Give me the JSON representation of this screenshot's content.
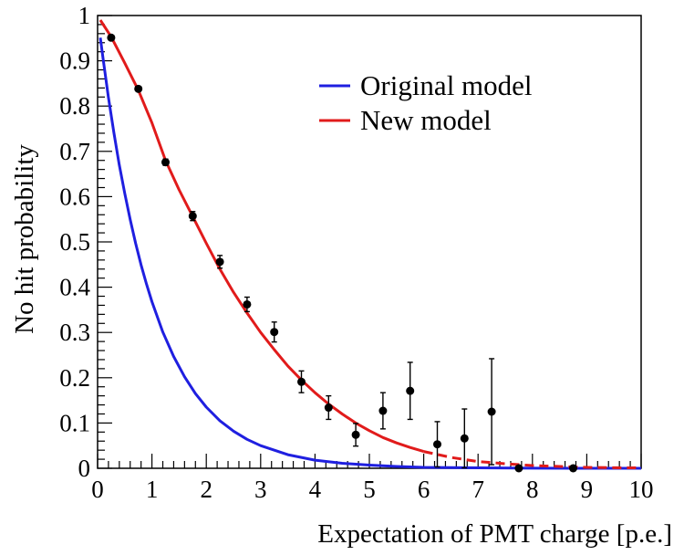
{
  "chart_data": {
    "type": "line",
    "title": "",
    "xlabel": "Expectation of  PMT charge [p.e.]",
    "ylabel": "No hit probability",
    "xlim": [
      0,
      10
    ],
    "ylim": [
      0,
      1
    ],
    "x_ticks": [
      0,
      1,
      2,
      3,
      4,
      5,
      6,
      7,
      8,
      9,
      10
    ],
    "x_tick_labels": [
      "0",
      "1",
      "2",
      "3",
      "4",
      "5",
      "6",
      "7",
      "8",
      "9",
      "10"
    ],
    "y_ticks": [
      0,
      0.1,
      0.2,
      0.3,
      0.4,
      0.5,
      0.6,
      0.7,
      0.8,
      0.9,
      1
    ],
    "y_tick_labels": [
      "0",
      "0.1",
      "0.2",
      "0.3",
      "0.4",
      "0.5",
      "0.6",
      "0.7",
      "0.8",
      "0.9",
      "1"
    ],
    "grid": false,
    "legend_position": "top-right",
    "series": [
      {
        "name": "Original model",
        "kind": "curve",
        "color": "#1f1fe0",
        "x": [
          0.05,
          0.1,
          0.2,
          0.3,
          0.4,
          0.5,
          0.6,
          0.7,
          0.8,
          0.9,
          1.0,
          1.2,
          1.4,
          1.6,
          1.8,
          2.0,
          2.25,
          2.5,
          2.75,
          3.0,
          3.5,
          4.0,
          4.5,
          5.0,
          5.5,
          6.0,
          7.0,
          8.0,
          9.0,
          10.0
        ],
        "y": [
          0.951,
          0.905,
          0.819,
          0.741,
          0.67,
          0.607,
          0.549,
          0.497,
          0.449,
          0.407,
          0.368,
          0.301,
          0.247,
          0.202,
          0.165,
          0.135,
          0.105,
          0.082,
          0.064,
          0.05,
          0.03,
          0.018,
          0.011,
          0.007,
          0.004,
          0.002,
          0.001,
          0.0003,
          0.0001,
          0.0
        ],
        "dashed_from_x": null
      },
      {
        "name": "New model",
        "kind": "curve",
        "color": "#e11b1b",
        "x": [
          0.05,
          0.25,
          0.5,
          0.75,
          1.0,
          1.25,
          1.5,
          1.75,
          2.0,
          2.25,
          2.5,
          2.75,
          3.0,
          3.25,
          3.5,
          3.75,
          4.0,
          4.25,
          4.5,
          4.75,
          5.0,
          5.25,
          5.5,
          5.75,
          6.0,
          6.5,
          7.0,
          7.5,
          8.0,
          8.5,
          9.0,
          9.5,
          10.0
        ],
        "y": [
          0.99,
          0.953,
          0.895,
          0.835,
          0.763,
          0.68,
          0.615,
          0.556,
          0.497,
          0.44,
          0.389,
          0.343,
          0.3,
          0.262,
          0.226,
          0.195,
          0.167,
          0.142,
          0.12,
          0.1,
          0.083,
          0.068,
          0.056,
          0.046,
          0.037,
          0.024,
          0.015,
          0.01,
          0.006,
          0.004,
          0.002,
          0.0012,
          0.0008
        ],
        "dashed_from_x": 6.0
      }
    ],
    "measurements": {
      "name": "",
      "color": "#000000",
      "points": [
        {
          "x": 0.25,
          "y": 0.951,
          "err": 0.004
        },
        {
          "x": 0.75,
          "y": 0.838,
          "err": 0.005
        },
        {
          "x": 1.25,
          "y": 0.676,
          "err": 0.007
        },
        {
          "x": 1.75,
          "y": 0.557,
          "err": 0.01
        },
        {
          "x": 2.25,
          "y": 0.456,
          "err": 0.014
        },
        {
          "x": 2.75,
          "y": 0.362,
          "err": 0.016
        },
        {
          "x": 3.25,
          "y": 0.301,
          "err": 0.022
        },
        {
          "x": 3.75,
          "y": 0.191,
          "err": 0.024
        },
        {
          "x": 4.25,
          "y": 0.134,
          "err": 0.026
        },
        {
          "x": 4.75,
          "y": 0.074,
          "err": 0.025
        },
        {
          "x": 5.25,
          "y": 0.127,
          "err": 0.04
        },
        {
          "x": 5.75,
          "y": 0.171,
          "err": 0.063
        },
        {
          "x": 6.25,
          "y": 0.053,
          "err": 0.05
        },
        {
          "x": 6.75,
          "y": 0.066,
          "err": 0.065
        },
        {
          "x": 7.25,
          "y": 0.125,
          "err": 0.117
        },
        {
          "x": 7.75,
          "y": 0.0,
          "err": 0.0
        },
        {
          "x": 8.75,
          "y": 0.0,
          "err": 0.0
        }
      ]
    },
    "legend": [
      {
        "label": "Original model",
        "color": "#1f1fe0"
      },
      {
        "label": "New model",
        "color": "#e11b1b"
      }
    ]
  }
}
